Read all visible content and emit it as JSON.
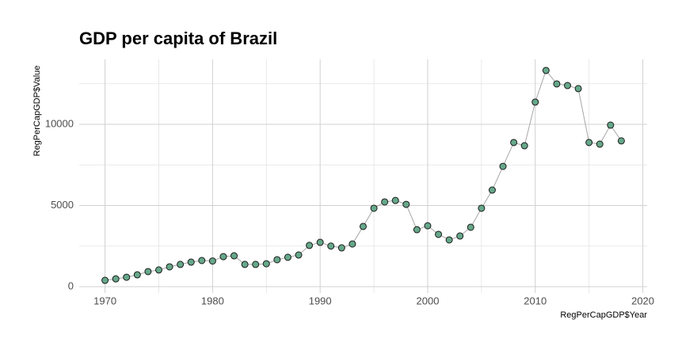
{
  "chart_data": {
    "type": "line",
    "title": "GDP per capita of Brazil",
    "x_label": "RegPerCapGDP$Year",
    "y_label": "RegPerCapGDP$Value",
    "x": [
      1970,
      1971,
      1972,
      1973,
      1974,
      1975,
      1976,
      1977,
      1978,
      1979,
      1980,
      1981,
      1982,
      1983,
      1984,
      1985,
      1986,
      1987,
      1988,
      1989,
      1990,
      1991,
      1992,
      1993,
      1994,
      1995,
      1996,
      1997,
      1998,
      1999,
      2000,
      2001,
      2002,
      2003,
      2004,
      2005,
      2006,
      2007,
      2008,
      2009,
      2010,
      2011,
      2012,
      2013,
      2014,
      2015,
      2016,
      2017,
      2018
    ],
    "series": [
      {
        "name": "Value",
        "color": "#66a88a",
        "line_color": "#a6a6a6",
        "values": [
          390,
          480,
          580,
          730,
          930,
          1030,
          1220,
          1370,
          1510,
          1610,
          1580,
          1850,
          1900,
          1370,
          1370,
          1410,
          1660,
          1810,
          1950,
          2540,
          2730,
          2500,
          2390,
          2630,
          3710,
          4830,
          5220,
          5310,
          5070,
          3510,
          3750,
          3220,
          2880,
          3120,
          3660,
          4830,
          5950,
          7410,
          8880,
          8680,
          11370,
          13320,
          12490,
          12390,
          12200,
          8880,
          8780,
          9950,
          8980
        ]
      }
    ],
    "xlim": [
      1967.6,
      2020.4
    ],
    "ylim": [
      -390,
      14000
    ],
    "xticks": [
      1970,
      1980,
      1990,
      2000,
      2010,
      2020
    ],
    "yticks": [
      0,
      5000,
      10000
    ],
    "xminor": [
      1975,
      1985,
      1995,
      2005,
      2015
    ],
    "yminor": [
      2500,
      7500,
      12500
    ],
    "grid": true
  }
}
